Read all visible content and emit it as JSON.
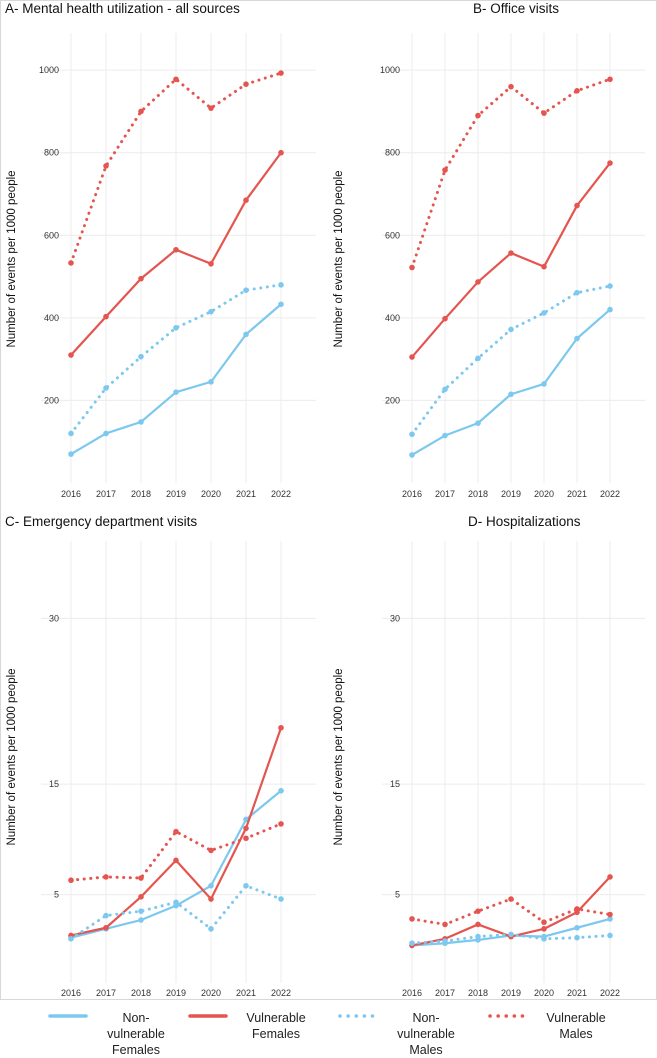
{
  "colors": {
    "vulnerable": "#e5554f",
    "nonvulnerable": "#7dc8ef",
    "grid": "#ececec",
    "tick": "#333333"
  },
  "legend": [
    {
      "key": "nv_f",
      "line1": "Non-vulnerable",
      "line2": "Females",
      "color": "#7dc8ef",
      "dash": "solid"
    },
    {
      "key": "v_f",
      "line1": "Vulnerable",
      "line2": "Females",
      "color": "#e5554f",
      "dash": "solid"
    },
    {
      "key": "nv_m",
      "line1": "Non-vulnerable",
      "line2": "Males",
      "color": "#7dc8ef",
      "dash": "dotted"
    },
    {
      "key": "v_m",
      "line1": "Vulnerable",
      "line2": "Males",
      "color": "#e5554f",
      "dash": "dotted"
    }
  ],
  "chart_data": [
    {
      "type": "line",
      "title": "A- Mental health utilization - all sources",
      "xlabel": "",
      "ylabel": "Number of events per 1000 people",
      "x": [
        2016,
        2017,
        2018,
        2019,
        2020,
        2021,
        2022
      ],
      "ylim": [
        0,
        1090
      ],
      "yticks": [
        200,
        400,
        600,
        800,
        1000
      ],
      "series": [
        {
          "name": "Non-vulnerable Females",
          "color": "#7dc8ef",
          "dash": "solid",
          "values": [
            70,
            120,
            148,
            220,
            245,
            360,
            433
          ]
        },
        {
          "name": "Vulnerable Females",
          "color": "#e5554f",
          "dash": "solid",
          "values": [
            310,
            403,
            495,
            565,
            531,
            685,
            800
          ]
        },
        {
          "name": "Non-vulnerable Males",
          "color": "#7dc8ef",
          "dash": "dotted",
          "values": [
            120,
            230,
            306,
            376,
            415,
            467,
            480
          ]
        },
        {
          "name": "Vulnerable Males",
          "color": "#e5554f",
          "dash": "dotted",
          "values": [
            533,
            768,
            900,
            978,
            908,
            966,
            993
          ]
        }
      ]
    },
    {
      "type": "line",
      "title": "B- Office visits",
      "xlabel": "",
      "ylabel": "Number of events per 1000 people",
      "x": [
        2016,
        2017,
        2018,
        2019,
        2020,
        2021,
        2022
      ],
      "ylim": [
        0,
        1090
      ],
      "yticks": [
        200,
        400,
        600,
        800,
        1000
      ],
      "series": [
        {
          "name": "Non-vulnerable Females",
          "color": "#7dc8ef",
          "dash": "solid",
          "values": [
            68,
            115,
            145,
            215,
            240,
            350,
            420
          ]
        },
        {
          "name": "Vulnerable Females",
          "color": "#e5554f",
          "dash": "solid",
          "values": [
            305,
            398,
            487,
            557,
            524,
            672,
            775
          ]
        },
        {
          "name": "Non-vulnerable Males",
          "color": "#7dc8ef",
          "dash": "dotted",
          "values": [
            118,
            227,
            302,
            372,
            412,
            461,
            477
          ]
        },
        {
          "name": "Vulnerable Males",
          "color": "#e5554f",
          "dash": "dotted",
          "values": [
            522,
            758,
            890,
            960,
            896,
            950,
            978
          ]
        }
      ]
    },
    {
      "type": "line",
      "title": "C- Emergency department visits",
      "xlabel": "",
      "ylabel": "Number of events per 1000 people",
      "x": [
        2016,
        2017,
        2018,
        2019,
        2020,
        2021,
        2022
      ],
      "ylim": [
        -3,
        37
      ],
      "yticks": [
        5,
        15,
        30
      ],
      "series": [
        {
          "name": "Non-vulnerable Females",
          "color": "#7dc8ef",
          "dash": "solid",
          "values": [
            1.1,
            1.9,
            2.7,
            4.0,
            5.8,
            11.8,
            14.4
          ]
        },
        {
          "name": "Vulnerable Females",
          "color": "#e5554f",
          "dash": "solid",
          "values": [
            1.3,
            2.0,
            4.8,
            8.1,
            4.6,
            11.0,
            20.1
          ]
        },
        {
          "name": "Non-vulnerable Males",
          "color": "#7dc8ef",
          "dash": "dotted",
          "values": [
            1.0,
            3.1,
            3.5,
            4.3,
            1.9,
            5.8,
            4.6
          ]
        },
        {
          "name": "Vulnerable Males",
          "color": "#e5554f",
          "dash": "dotted",
          "values": [
            6.3,
            6.6,
            6.5,
            10.7,
            9.0,
            10.1,
            11.4
          ]
        }
      ]
    },
    {
      "type": "line",
      "title": "D- Hospitalizations",
      "xlabel": "",
      "ylabel": "Number of events per 1000 people",
      "x": [
        2016,
        2017,
        2018,
        2019,
        2020,
        2021,
        2022
      ],
      "ylim": [
        -3,
        37
      ],
      "yticks": [
        5,
        15,
        30
      ],
      "series": [
        {
          "name": "Non-vulnerable Females",
          "color": "#7dc8ef",
          "dash": "solid",
          "values": [
            0.4,
            0.6,
            0.9,
            1.3,
            1.2,
            2.0,
            2.8
          ]
        },
        {
          "name": "Vulnerable Females",
          "color": "#e5554f",
          "dash": "solid",
          "values": [
            0.4,
            1.0,
            2.3,
            1.2,
            1.9,
            3.4,
            6.6
          ]
        },
        {
          "name": "Non-vulnerable Males",
          "color": "#7dc8ef",
          "dash": "dotted",
          "values": [
            0.6,
            0.8,
            1.2,
            1.4,
            1.0,
            1.1,
            1.3
          ]
        },
        {
          "name": "Vulnerable Males",
          "color": "#e5554f",
          "dash": "dotted",
          "values": [
            2.8,
            2.3,
            3.5,
            4.6,
            2.5,
            3.7,
            3.2
          ]
        }
      ]
    }
  ]
}
